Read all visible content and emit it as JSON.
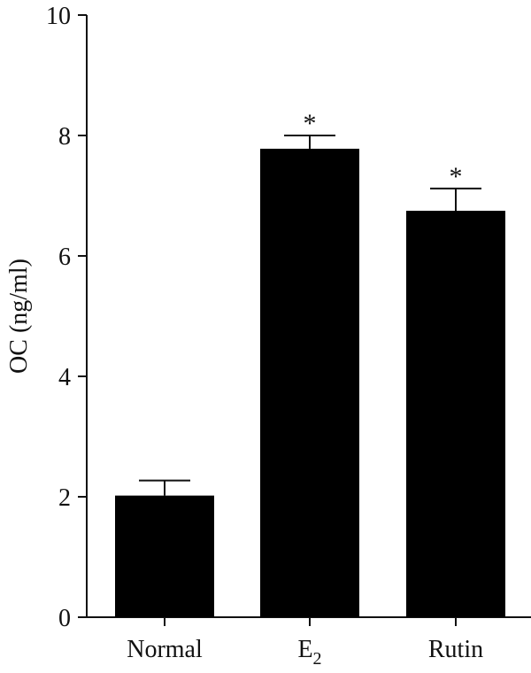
{
  "chart_data": {
    "type": "bar",
    "title": "",
    "xlabel": "",
    "ylabel": "OC (ng/ml)",
    "ylim": [
      0,
      10
    ],
    "yticks": [
      0,
      2,
      4,
      6,
      8,
      10
    ],
    "grid": false,
    "legend": "none",
    "bar_color": "#000000",
    "categories": [
      {
        "base": "Normal",
        "sub": ""
      },
      {
        "base": "E",
        "sub": "2"
      },
      {
        "base": "Rutin",
        "sub": ""
      }
    ],
    "values": [
      2.02,
      7.78,
      6.75
    ],
    "errors": [
      0.25,
      0.22,
      0.37
    ],
    "annotations": [
      "",
      "*",
      "*"
    ]
  }
}
